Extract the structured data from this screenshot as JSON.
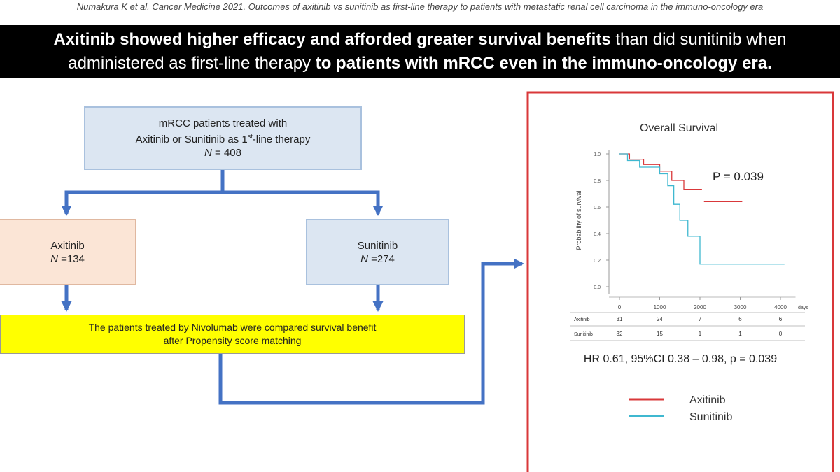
{
  "citation": "Numakura K et al. Cancer Medicine 2021. Outcomes of axitinib vs sunitinib as first-line therapy to patients with metastatic renal cell carcinoma in the immuno-oncology era",
  "headline": {
    "lines": [
      [
        {
          "text": "Axitinib showed higher efficacy and afforded greater survival benefits",
          "bold": true
        },
        {
          "text": " than did sunitinib when",
          "bold": false
        }
      ],
      [
        {
          "text": "administered as first-line therapy",
          "bold": false
        },
        {
          "text": " to patients with mRCC even in the immuno-oncology era.",
          "bold": true
        }
      ]
    ]
  },
  "flowchart": {
    "top": {
      "line1": "mRCC patients treated with",
      "line2": [
        "Axitinib or Sunitinib as 1",
        "st",
        "-line therapy"
      ],
      "n": "N",
      "count": " = 408"
    },
    "left": {
      "label": "Axitinib",
      "n": "N",
      "count": " =134"
    },
    "right": {
      "label": "Sunitinib",
      "n": "N",
      "count": " =274"
    },
    "bottom": {
      "line1": "The patients treated by Nivolumab were compared survival benefit",
      "line2": "after Propensity score matching"
    }
  },
  "chart_data": {
    "type": "line",
    "title": "Overall Survival",
    "annotation": "P = 0.039",
    "y_label": "Probability of survival",
    "x_unit": "days",
    "xlim": [
      0,
      4200
    ],
    "xticks": [
      0,
      1000,
      2000,
      3000,
      4000
    ],
    "ylim": [
      0,
      1
    ],
    "yticks": [
      {
        "value": 0,
        "label": "0.0"
      },
      {
        "value": 0.2,
        "label": "0.2"
      },
      {
        "value": 0.4,
        "label": "0.4"
      },
      {
        "value": 0.6,
        "label": "0.6"
      },
      {
        "value": 0.8,
        "label": "0.8"
      },
      {
        "value": 1,
        "label": "1.0"
      }
    ],
    "series": [
      {
        "name": "Axitinib",
        "color": "#d9383a",
        "x": [
          0,
          250,
          250,
          600,
          600,
          1000,
          1000,
          1300,
          1300,
          1600,
          1600,
          2050,
          null,
          2100,
          3050
        ],
        "values": [
          1,
          1,
          0.96,
          0.96,
          0.92,
          0.92,
          0.87,
          0.87,
          0.8,
          0.8,
          0.73,
          0.73,
          null,
          0.64,
          0.64
        ]
      },
      {
        "name": "Sunitinib",
        "color": "#3fb8d0",
        "x": [
          0,
          200,
          200,
          500,
          500,
          1000,
          1000,
          1200,
          1200,
          1350,
          1350,
          1500,
          1500,
          1700,
          1700,
          2000,
          2000,
          4100
        ],
        "values": [
          1,
          1,
          0.95,
          0.95,
          0.9,
          0.9,
          0.85,
          0.85,
          0.76,
          0.76,
          0.62,
          0.62,
          0.5,
          0.5,
          0.38,
          0.38,
          0.17,
          0.17
        ]
      }
    ],
    "risk_table": [
      {
        "name": "Axitinib",
        "counts": [
          31,
          24,
          7,
          6,
          6
        ]
      },
      {
        "name": "Sunitinib",
        "counts": [
          32,
          15,
          1,
          1,
          0
        ]
      }
    ],
    "hr_text": "HR 0.61, 95%CI 0.38 – 0.98, p = 0.039"
  }
}
